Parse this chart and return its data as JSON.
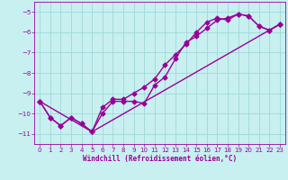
{
  "xlabel": "Windchill (Refroidissement éolien,°C)",
  "bg_color": "#c8f0f0",
  "grid_color": "#a0d8d8",
  "line_color": "#990099",
  "xlim": [
    -0.5,
    23.5
  ],
  "ylim": [
    -11.5,
    -4.5
  ],
  "yticks": [
    -11,
    -10,
    -9,
    -8,
    -7,
    -6,
    -5
  ],
  "xticks": [
    0,
    1,
    2,
    3,
    4,
    5,
    6,
    7,
    8,
    9,
    10,
    11,
    12,
    13,
    14,
    15,
    16,
    17,
    18,
    19,
    20,
    21,
    22,
    23
  ],
  "series1_x": [
    0,
    1,
    2,
    3,
    4,
    5,
    6,
    7,
    8,
    9,
    10,
    11,
    12,
    13,
    14,
    15,
    16,
    17,
    18,
    19,
    20,
    21,
    22,
    23
  ],
  "series1_y": [
    -9.4,
    -10.2,
    -10.6,
    -10.2,
    -10.5,
    -10.9,
    -10.0,
    -9.4,
    -9.4,
    -9.4,
    -9.5,
    -8.6,
    -8.2,
    -7.3,
    -6.5,
    -6.2,
    -5.8,
    -5.4,
    -5.3,
    -5.1,
    -5.2,
    -5.7,
    -5.9,
    -5.6
  ],
  "series2_x": [
    0,
    1,
    2,
    3,
    4,
    5,
    6,
    7,
    8,
    9,
    10,
    11,
    12,
    13,
    14,
    15,
    16,
    17,
    18,
    19,
    20,
    21,
    22,
    23
  ],
  "series2_y": [
    -9.4,
    -10.2,
    -10.6,
    -10.2,
    -10.5,
    -10.9,
    -9.7,
    -9.3,
    -9.3,
    -9.0,
    -8.7,
    -8.3,
    -7.6,
    -7.1,
    -6.6,
    -6.0,
    -5.5,
    -5.3,
    -5.4,
    -5.1,
    -5.2,
    -5.7,
    -5.9,
    -5.6
  ],
  "series3_x": [
    0,
    5,
    23
  ],
  "series3_y": [
    -9.4,
    -10.9,
    -5.6
  ],
  "marker": "D",
  "marker_size": 2.5,
  "line_width": 1.0
}
